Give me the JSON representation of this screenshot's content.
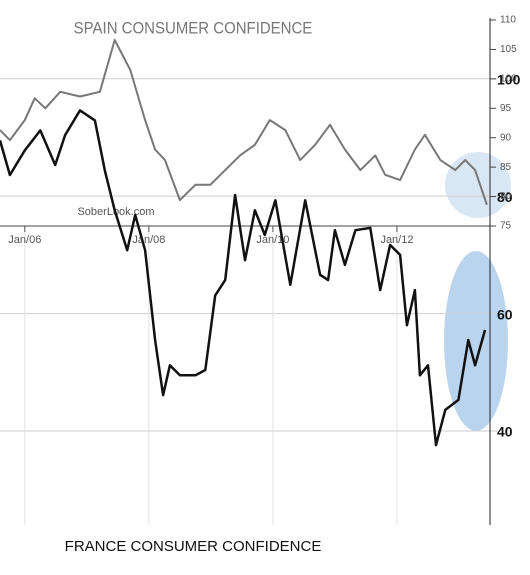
{
  "chart_data": [
    {
      "type": "line",
      "title": "SPAIN CONSUMER CONFIDENCE",
      "source": "SoberLook.com",
      "xlim": [
        2005.6,
        2013.5
      ],
      "xticks": [
        {
          "value": 2006,
          "label": "Jan/06"
        },
        {
          "value": 2008,
          "label": "Jan/08"
        },
        {
          "value": 2010,
          "label": "Jan/10"
        },
        {
          "value": 2012,
          "label": "Jan/12"
        }
      ],
      "ylim": [
        75,
        110
      ],
      "yticks": [
        75,
        80,
        85,
        90,
        95,
        100,
        105,
        110
      ],
      "series": [
        {
          "color": "#777777",
          "x": [
            2005.6,
            2005.76,
            2006.0,
            2006.16,
            2006.33,
            2006.57,
            2006.89,
            2007.21,
            2007.45,
            2007.7,
            2007.94,
            2008.1,
            2008.26,
            2008.5,
            2008.75,
            2008.99,
            2009.23,
            2009.47,
            2009.71,
            2009.95,
            2010.2,
            2010.44,
            2010.68,
            2010.92,
            2011.16,
            2011.41,
            2011.65,
            2011.81,
            2012.05,
            2012.29,
            2012.45,
            2012.7,
            2012.94,
            2013.1,
            2013.26,
            2013.45
          ],
          "values": [
            91.3,
            89.6,
            93,
            96.7,
            95,
            97.8,
            97,
            97.8,
            106.6,
            101.5,
            93,
            88,
            86.2,
            79.4,
            82,
            82,
            84.5,
            87,
            88.8,
            93,
            91.3,
            86.2,
            88.8,
            92.2,
            88,
            84.5,
            87,
            83.7,
            82.8,
            88,
            90.5,
            86.2,
            84.5,
            86.2,
            84.5,
            78.6
          ]
        }
      ]
    },
    {
      "type": "line",
      "title": "FRANCE CONSUMER CONFIDENCE",
      "xlim": [
        2005.6,
        2013.5
      ],
      "ylim": [
        24,
        110
      ],
      "yticks": [
        40,
        60,
        80,
        100
      ],
      "grid": true,
      "series": [
        {
          "color": "#111111",
          "x": [
            2005.6,
            2005.76,
            2006.0,
            2006.25,
            2006.49,
            2006.65,
            2006.89,
            2007.13,
            2007.29,
            2007.45,
            2007.65,
            2007.78,
            2007.94,
            2008.1,
            2008.23,
            2008.34,
            2008.5,
            2008.75,
            2008.91,
            2009.07,
            2009.23,
            2009.39,
            2009.55,
            2009.71,
            2009.87,
            2010.04,
            2010.28,
            2010.52,
            2010.76,
            2010.89,
            2011.0,
            2011.16,
            2011.33,
            2011.57,
            2011.73,
            2011.89,
            2012.05,
            2012.16,
            2012.29,
            2012.37,
            2012.5,
            2012.63,
            2012.78,
            2012.99,
            2013.15,
            2013.26,
            2013.42
          ],
          "values": [
            89.5,
            83.6,
            87.8,
            91.2,
            85.3,
            90.4,
            94.6,
            92.9,
            84.4,
            77.6,
            70.8,
            76.8,
            70.8,
            55.5,
            46.1,
            51.2,
            49.5,
            49.5,
            50.4,
            63.1,
            65.7,
            80.2,
            69.1,
            77.6,
            73.4,
            79.3,
            64.9,
            79.3,
            66.6,
            65.7,
            74.2,
            68.3,
            74.2,
            74.6,
            64,
            71.7,
            70,
            58,
            64,
            49.5,
            51.2,
            37.6,
            43.6,
            45.3,
            55.5,
            51.2,
            57.2
          ]
        }
      ]
    }
  ]
}
